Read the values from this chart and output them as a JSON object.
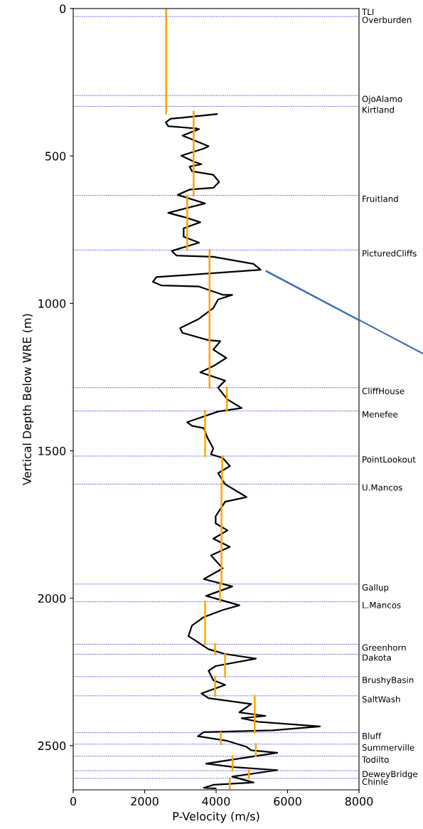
{
  "chart_data": {
    "type": "line",
    "xlabel": "P-Velocity (m/s)",
    "ylabel": "Vertical Depth Below WRE (m)",
    "xlim": [
      0,
      8000
    ],
    "xticks": [
      0,
      2000,
      4000,
      6000,
      8000
    ],
    "ylim": [
      2650,
      0
    ],
    "yticks": [
      0,
      500,
      1000,
      1500,
      2000,
      2500
    ],
    "grid": false,
    "legend": false,
    "series": [
      {
        "color": "#000000",
        "x": [
          4020,
          2726,
          2593,
          2660,
          3457,
          3523,
          3058,
          3390,
          3788,
          3656,
          3025,
          3390,
          3589,
          3257,
          3324,
          3921,
          4086,
          3921,
          3257,
          2926,
          3689,
          2660,
          3158,
          3556,
          3091,
          3091,
          3523,
          2760,
          2893,
          3921,
          5048,
          5247,
          2328,
          2229,
          2461,
          3523,
          4185,
          4451,
          4053,
          3921,
          3523,
          2992,
          3058,
          3788,
          4119,
          3921,
          4285,
          3921,
          3556,
          4252,
          4053,
          4318,
          4717,
          4053,
          3191,
          3324,
          3656,
          3755,
          3921,
          3855,
          4185,
          4385,
          4053,
          4252,
          4850,
          4252,
          3987,
          3987,
          4318,
          3921,
          4385,
          3855,
          4185,
          3656,
          4451,
          3722,
          4651,
          4185,
          3656,
          3324,
          3224,
          3390,
          3788,
          4252,
          5114,
          3987,
          3788,
          3921,
          4252,
          3589,
          3788,
          4982,
          4651,
          5380,
          4717,
          5181,
          6906,
          5579,
          3656,
          3490,
          4318,
          4850,
          4982,
          5711,
          3722,
          4518,
          5711,
          4451,
          5048,
          3921,
          3656,
          3987
        ],
        "values": [
          358,
          374,
          386,
          399,
          407,
          409,
          431,
          447,
          467,
          475,
          499,
          520,
          528,
          536,
          552,
          564,
          588,
          608,
          614,
          632,
          661,
          693,
          709,
          725,
          745,
          774,
          794,
          822,
          838,
          842,
          866,
          886,
          911,
          927,
          939,
          943,
          971,
          971,
          987,
          1016,
          1052,
          1084,
          1100,
          1125,
          1128,
          1157,
          1185,
          1213,
          1234,
          1262,
          1286,
          1326,
          1355,
          1367,
          1403,
          1415,
          1423,
          1455,
          1492,
          1512,
          1524,
          1552,
          1576,
          1613,
          1657,
          1673,
          1722,
          1746,
          1770,
          1798,
          1826,
          1855,
          1899,
          1935,
          1960,
          1992,
          2024,
          2040,
          2064,
          2093,
          2129,
          2141,
          2173,
          2189,
          2205,
          2230,
          2246,
          2278,
          2294,
          2323,
          2339,
          2359,
          2387,
          2399,
          2407,
          2419,
          2435,
          2448,
          2454,
          2468,
          2484,
          2504,
          2516,
          2524,
          2561,
          2573,
          2583,
          2605,
          2625,
          2633,
          2643,
          2645
        ]
      },
      {
        "color": "#ffa500",
        "x": [
          2600,
          2600,
          null,
          3370,
          3370,
          null,
          3190,
          3190,
          null,
          3815,
          3815,
          null,
          4300,
          4300
        ],
        "values": [
          0,
          356,
          null,
          350,
          634,
          null,
          634,
          819,
          null,
          819,
          1286,
          null,
          1286,
          1365
        ]
      },
      {
        "color": "#ffa500",
        "x": [
          3690,
          3690,
          null,
          4170,
          4170,
          null,
          4150,
          4150,
          null,
          4110,
          4110
        ],
        "values": [
          1365,
          1518,
          null,
          1518,
          1613,
          null,
          1613,
          1952,
          null,
          1952,
          2012
        ]
      },
      {
        "color": "#ffa500",
        "x": [
          3690,
          3690,
          null,
          3970,
          3970,
          null,
          4250,
          4250
        ],
        "values": [
          2012,
          2156,
          null,
          2156,
          2190,
          null,
          2190,
          2266
        ]
      },
      {
        "color": "#ffa500",
        "x": [
          3970,
          3970,
          null,
          5080,
          5080,
          null,
          4130,
          4130,
          null,
          5110,
          5110,
          null,
          4460,
          4460,
          null,
          4920,
          4920,
          null,
          4380,
          4380
        ],
        "values": [
          2266,
          2331,
          null,
          2331,
          2456,
          null,
          2456,
          2495,
          null,
          2495,
          2536,
          null,
          2536,
          2585,
          null,
          2585,
          2611,
          null,
          2611,
          2645
        ]
      },
      {
        "color": "#3d6fb0",
        "x": [
          5410,
          8000
        ],
        "values": [
          891,
          1057
        ]
      }
    ],
    "ref_lines": [
      {
        "axis": "y",
        "value": 0,
        "label": "TLI",
        "color": "#0000ff",
        "line_style": "dotted"
      },
      {
        "axis": "y",
        "value": 27,
        "label": "Overburden",
        "color": "#0000ff",
        "line_style": "dotted"
      },
      {
        "axis": "y",
        "value": 295,
        "label": "OjoAlamo",
        "color": "#0000ff",
        "line_style": "dotted"
      },
      {
        "axis": "y",
        "value": 332,
        "label": "Kirtland",
        "color": "#0000ff",
        "line_style": "dotted"
      },
      {
        "axis": "y",
        "value": 634,
        "label": "Fruitland",
        "color": "#0000ff",
        "line_style": "dotted"
      },
      {
        "axis": "y",
        "value": 819,
        "label": "PicturedCliffs",
        "color": "#0000ff",
        "line_style": "dotted"
      },
      {
        "axis": "y",
        "value": 1286,
        "label": "CliffHouse",
        "color": "#0000ff",
        "line_style": "dotted"
      },
      {
        "axis": "y",
        "value": 1365,
        "label": "Menefee",
        "color": "#0000ff",
        "line_style": "dotted"
      },
      {
        "axis": "y",
        "value": 1518,
        "label": "PointLookout",
        "color": "#0000ff",
        "line_style": "dotted"
      },
      {
        "axis": "y",
        "value": 1613,
        "label": "U.Mancos",
        "color": "#0000ff",
        "line_style": "dotted"
      },
      {
        "axis": "y",
        "value": 1952,
        "label": "Gallup",
        "color": "#0000ff",
        "line_style": "dotted"
      },
      {
        "axis": "y",
        "value": 2012,
        "label": "L.Mancos",
        "color": "#0000ff",
        "line_style": "dotted"
      },
      {
        "axis": "y",
        "value": 2156,
        "label": "Greenhorn",
        "color": "#0000ff",
        "line_style": "dotted"
      },
      {
        "axis": "y",
        "value": 2190,
        "label": "Dakota",
        "color": "#0000ff",
        "line_style": "dotted"
      },
      {
        "axis": "y",
        "value": 2266,
        "label": "BrushyBasin",
        "color": "#0000ff",
        "line_style": "dotted"
      },
      {
        "axis": "y",
        "value": 2331,
        "label": "SaltWash",
        "color": "#0000ff",
        "line_style": "dotted"
      },
      {
        "axis": "y",
        "value": 2456,
        "label": "Bluff",
        "color": "#0000ff",
        "line_style": "dotted"
      },
      {
        "axis": "y",
        "value": 2495,
        "label": "Summerville",
        "color": "#0000ff",
        "line_style": "dotted"
      },
      {
        "axis": "y",
        "value": 2536,
        "label": "Todilto",
        "color": "#0000ff",
        "line_style": "dotted"
      },
      {
        "axis": "y",
        "value": 2585,
        "label": "DeweyBridge",
        "color": "#0000ff",
        "line_style": "dotted"
      },
      {
        "axis": "y",
        "value": 2611,
        "label": "Chinle",
        "color": "#0000ff",
        "line_style": "dotted"
      }
    ]
  }
}
